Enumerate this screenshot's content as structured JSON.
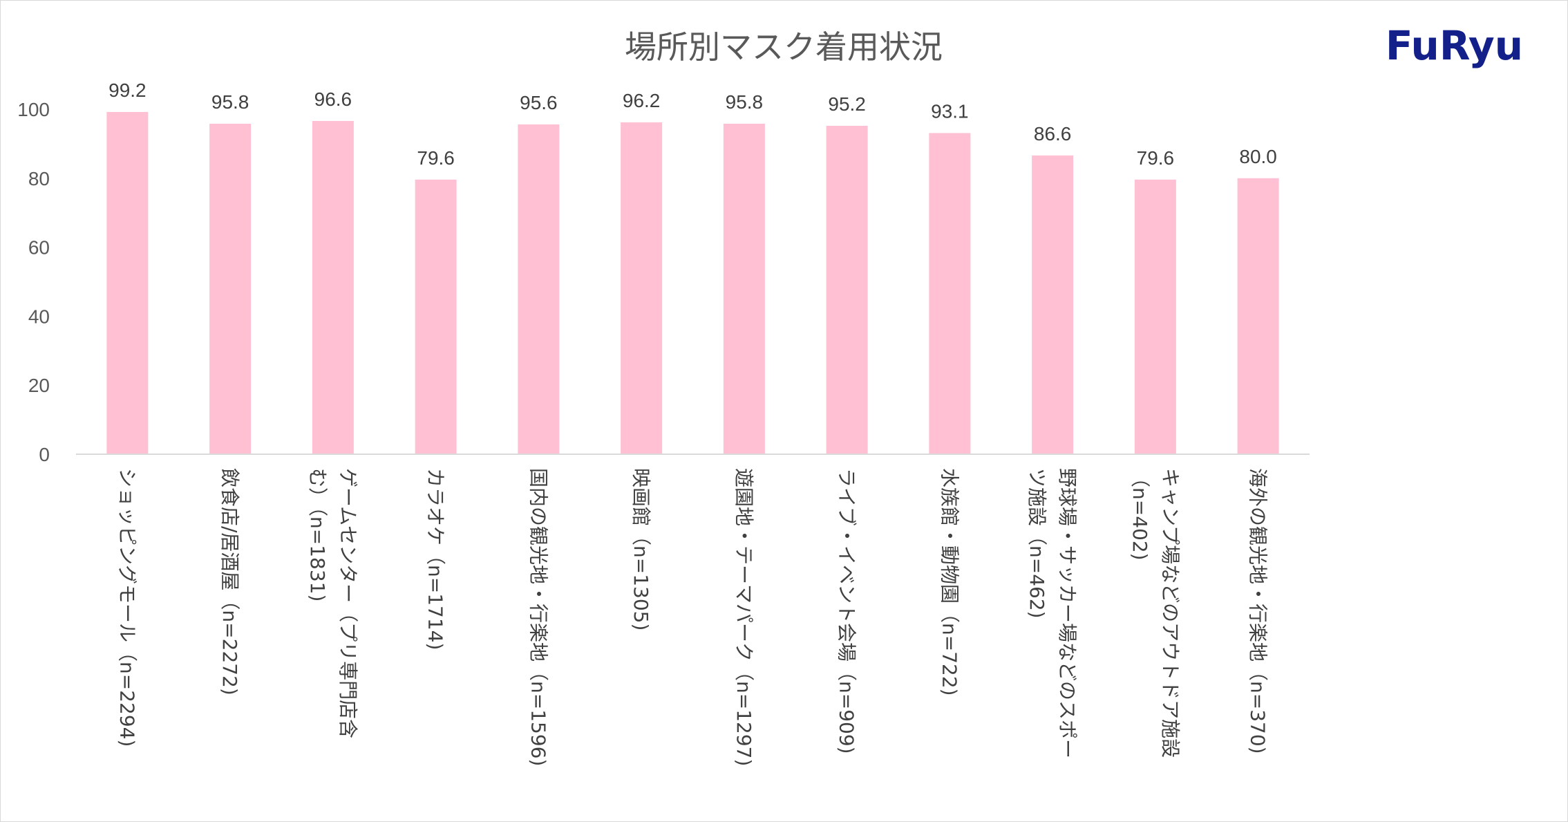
{
  "logo": {
    "text": "FuRyu",
    "color": "#13208a"
  },
  "chart_data": {
    "type": "bar",
    "title": "場所別マスク着用状況",
    "xlabel": "",
    "ylabel": "",
    "ylim": [
      0,
      100
    ],
    "yticks": [
      0,
      20,
      40,
      60,
      80,
      100
    ],
    "grid": false,
    "legend": "none",
    "bar_color": "#ffc0d4",
    "categories": [
      [
        "ショッピングモール（n=2294)"
      ],
      [
        "飲食店/居酒屋（n=2272)"
      ],
      [
        "ゲームセンター（プリ専門店含",
        "む）（n=1831)"
      ],
      [
        "カラオケ（n=1714)"
      ],
      [
        "国内の観光地・行楽地（n=1596)"
      ],
      [
        "映画館（n=1305)"
      ],
      [
        "遊園地・テーマパーク（n=1297)"
      ],
      [
        "ライブ・イベント会場（n=909)"
      ],
      [
        "水族館・動物園（n=722)"
      ],
      [
        "野球場・サッカー場などのスポー",
        "ツ施設（n=462)"
      ],
      [
        "キャンプ場などのアウトドア施設",
        "（n=402)"
      ],
      [
        "海外の観光地・行楽地（n=370)"
      ]
    ],
    "values": [
      99.2,
      95.8,
      96.6,
      79.6,
      95.6,
      96.2,
      95.8,
      95.2,
      93.1,
      86.6,
      79.6,
      80.0
    ],
    "data_labels": [
      "99.2",
      "95.8",
      "96.6",
      "79.6",
      "95.6",
      "96.2",
      "95.8",
      "95.2",
      "93.1",
      "86.6",
      "79.6",
      "80.0"
    ]
  }
}
